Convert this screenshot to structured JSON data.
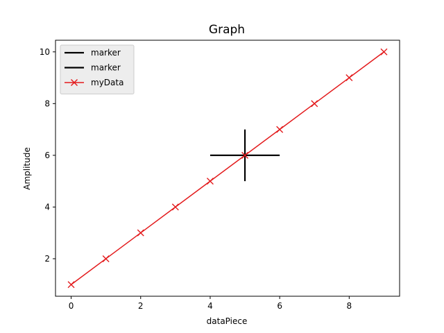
{
  "chart_data": {
    "type": "line",
    "title": "Graph",
    "xlabel": "dataPiece",
    "ylabel": "Amplitude",
    "xlim": [
      -0.45,
      9.45
    ],
    "ylim": [
      0.55,
      10.45
    ],
    "xticks": [
      0,
      2,
      4,
      6,
      8
    ],
    "yticks": [
      2,
      4,
      6,
      8,
      10
    ],
    "grid": false,
    "legend_position": "top-left",
    "series": [
      {
        "name": "marker",
        "color": "#000000",
        "marker": "none",
        "x": [
          4,
          6
        ],
        "y": [
          6,
          6
        ]
      },
      {
        "name": "marker",
        "color": "#000000",
        "marker": "none",
        "x": [
          5,
          5
        ],
        "y": [
          5,
          7
        ]
      },
      {
        "name": "myData",
        "color": "#e31a1c",
        "marker": "x",
        "x": [
          0,
          1,
          2,
          3,
          4,
          5,
          6,
          7,
          8,
          9
        ],
        "y": [
          1,
          2,
          3,
          4,
          5,
          6,
          7,
          8,
          9,
          10
        ]
      }
    ]
  }
}
